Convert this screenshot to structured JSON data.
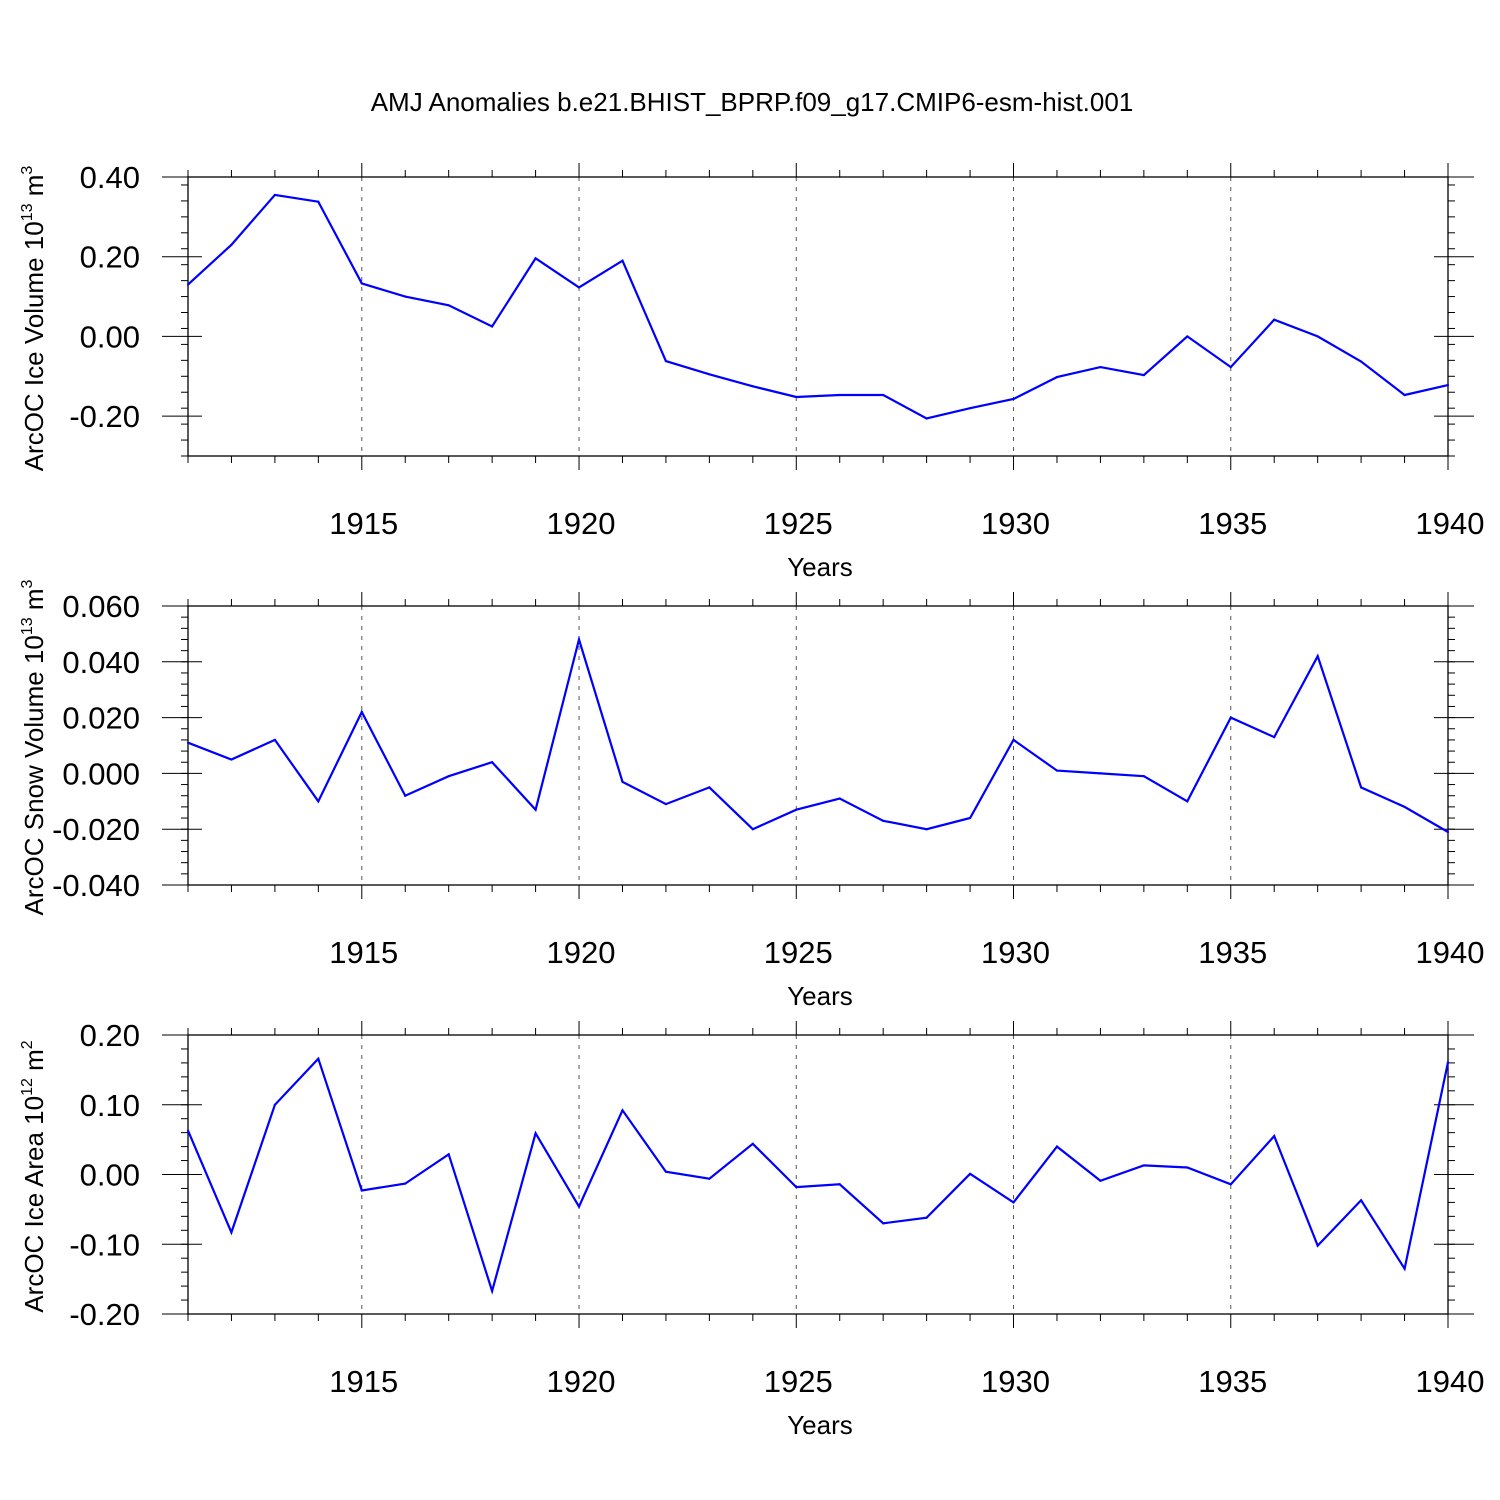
{
  "figure": {
    "title": "AMJ Anomalies b.e21.BHIST_BPRP.f09_g17.CMIP6-esm-hist.001",
    "line_color": "#0000ff"
  },
  "chart_data": [
    {
      "type": "line",
      "xlabel": "Years",
      "ylabel": {
        "main": "ArcOC Ice Volume 10",
        "exp": "13",
        "unit": " m",
        "unit_exp": "3"
      },
      "xlim": [
        1911,
        1940
      ],
      "ylim": [
        -0.3,
        0.4
      ],
      "xticks": [
        1915,
        1920,
        1925,
        1930,
        1935,
        1940
      ],
      "yticks": [
        -0.2,
        0.0,
        0.2,
        0.4
      ],
      "ytick_labels": [
        "-0.20",
        "0.00",
        "0.20",
        "0.40"
      ],
      "x": [
        1911,
        1912,
        1913,
        1914,
        1915,
        1916,
        1917,
        1918,
        1919,
        1920,
        1921,
        1922,
        1923,
        1924,
        1925,
        1926,
        1927,
        1928,
        1929,
        1930,
        1931,
        1932,
        1933,
        1934,
        1935,
        1936,
        1937,
        1938,
        1939,
        1940
      ],
      "values": [
        0.13,
        0.23,
        0.355,
        0.338,
        0.133,
        0.1,
        0.078,
        0.025,
        0.196,
        0.123,
        0.19,
        -0.062,
        -0.095,
        -0.125,
        -0.152,
        -0.147,
        -0.147,
        -0.206,
        -0.18,
        -0.157,
        -0.102,
        -0.077,
        -0.097,
        0.0,
        -0.077,
        0.042,
        0.0,
        -0.063,
        -0.147,
        -0.122
      ]
    },
    {
      "type": "line",
      "xlabel": "Years",
      "ylabel": {
        "main": "ArcOC Snow Volume 10",
        "exp": "13",
        "unit": " m",
        "unit_exp": "3"
      },
      "xlim": [
        1911,
        1940
      ],
      "ylim": [
        -0.04,
        0.06
      ],
      "xticks": [
        1915,
        1920,
        1925,
        1930,
        1935,
        1940
      ],
      "yticks": [
        -0.04,
        -0.02,
        0.0,
        0.02,
        0.04,
        0.06
      ],
      "ytick_labels": [
        "-0.040",
        "-0.020",
        "0.000",
        "0.020",
        "0.040",
        "0.060"
      ],
      "x": [
        1911,
        1912,
        1913,
        1914,
        1915,
        1916,
        1917,
        1918,
        1919,
        1920,
        1921,
        1922,
        1923,
        1924,
        1925,
        1926,
        1927,
        1928,
        1929,
        1930,
        1931,
        1932,
        1933,
        1934,
        1935,
        1936,
        1937,
        1938,
        1939,
        1940
      ],
      "values": [
        0.011,
        0.005,
        0.012,
        -0.01,
        0.022,
        -0.008,
        -0.001,
        0.004,
        -0.013,
        0.048,
        -0.003,
        -0.011,
        -0.005,
        -0.02,
        -0.013,
        -0.009,
        -0.017,
        -0.02,
        -0.016,
        0.012,
        0.001,
        0.0,
        -0.001,
        -0.01,
        0.02,
        0.013,
        0.042,
        -0.005,
        -0.012,
        -0.021
      ]
    },
    {
      "type": "line",
      "xlabel": "Years",
      "ylabel": {
        "main": "ArcOC Ice Area 10",
        "exp": "12",
        "unit": " m",
        "unit_exp": "2"
      },
      "xlim": [
        1911,
        1940
      ],
      "ylim": [
        -0.2,
        0.2
      ],
      "xticks": [
        1915,
        1920,
        1925,
        1930,
        1935,
        1940
      ],
      "yticks": [
        -0.2,
        -0.1,
        0.0,
        0.1,
        0.2
      ],
      "ytick_labels": [
        "-0.20",
        "-0.10",
        "0.00",
        "0.10",
        "0.20"
      ],
      "x": [
        1911,
        1912,
        1913,
        1914,
        1915,
        1916,
        1917,
        1918,
        1919,
        1920,
        1921,
        1922,
        1923,
        1924,
        1925,
        1926,
        1927,
        1928,
        1929,
        1930,
        1931,
        1932,
        1933,
        1934,
        1935,
        1936,
        1937,
        1938,
        1939,
        1940
      ],
      "values": [
        0.063,
        -0.083,
        0.1,
        0.166,
        -0.023,
        -0.013,
        0.029,
        -0.167,
        0.059,
        -0.046,
        0.092,
        0.004,
        -0.006,
        0.044,
        -0.018,
        -0.014,
        -0.07,
        -0.062,
        0.001,
        -0.04,
        0.04,
        -0.009,
        0.013,
        0.01,
        -0.014,
        0.055,
        -0.102,
        -0.037,
        -0.135,
        0.161
      ]
    }
  ]
}
